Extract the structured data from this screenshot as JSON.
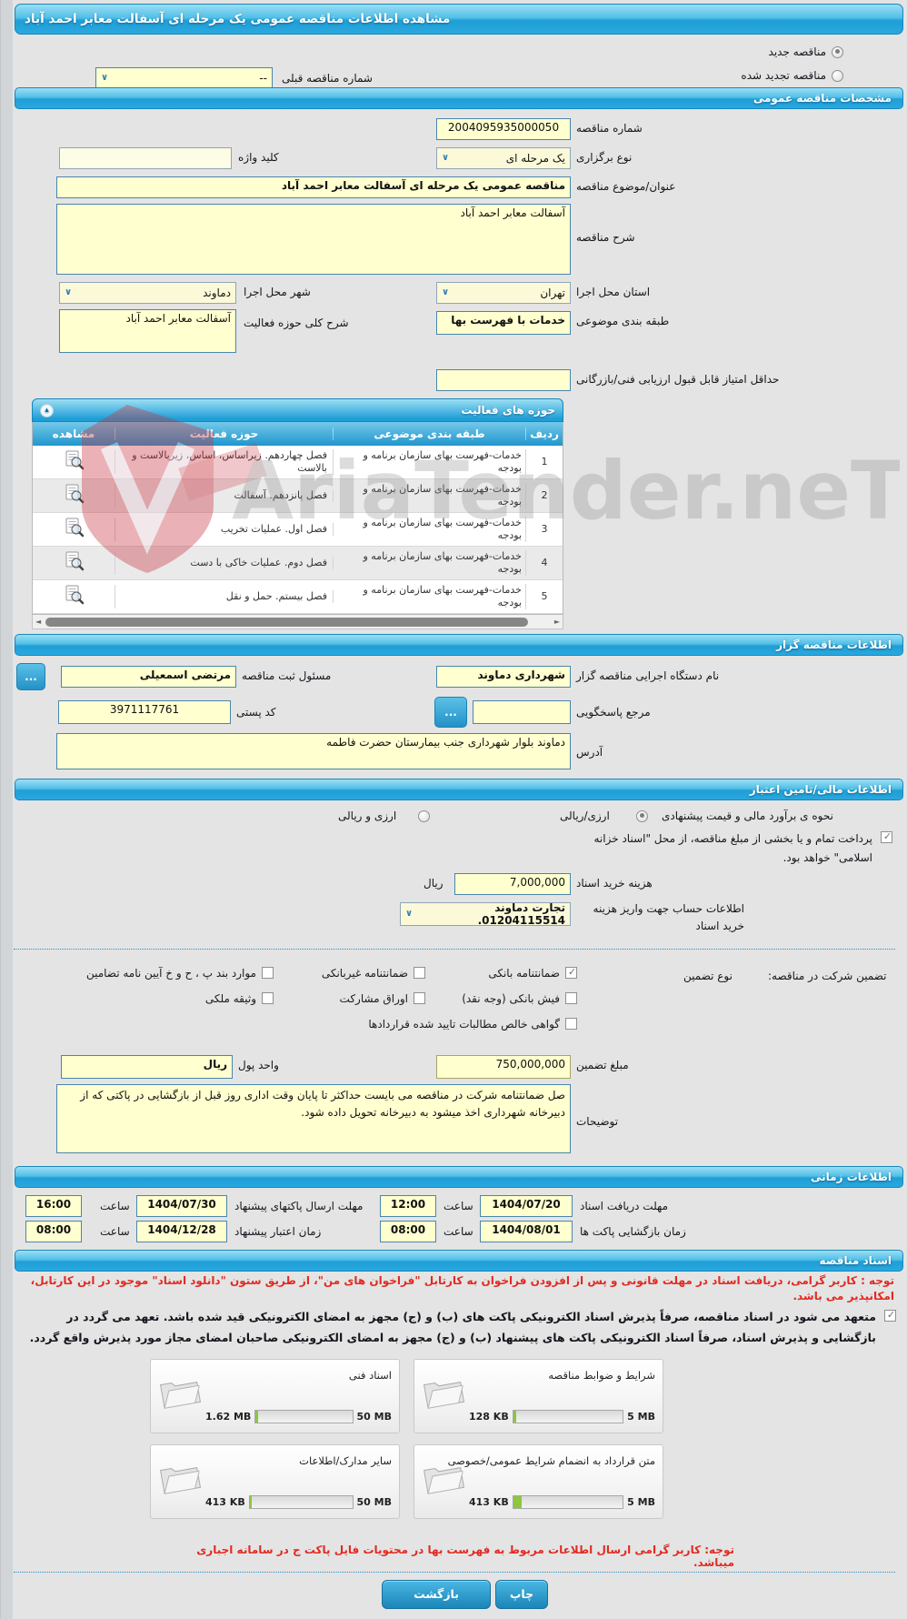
{
  "title": "مشاهده اطلاعات مناقصه عمومی یک مرحله ای آسفالت معابر احمد آباد",
  "watermark": "AriaTender.neT",
  "colors": {
    "header_blue": "#28a7de",
    "field_yellow": "#ffffcf",
    "alert_red": "#e22a21",
    "progress_green": "#8dc63f",
    "button_blue": "#1b85b8"
  },
  "top": {
    "new_label": "مناقصه جدید",
    "new_checked": true,
    "renewed_label": "مناقصه تجدید شده",
    "renewed_checked": false,
    "prev_label": "شماره مناقصه قبلی",
    "prev_value": "--"
  },
  "specs": {
    "header": "مشخصات مناقصه عمومی",
    "number_label": "شماره مناقصه",
    "number": "2004095935000050",
    "type_label": "نوع برگزاری",
    "type_value": "یک مرحله ای",
    "keyword_label": "کلید واژه",
    "keyword_value": "",
    "subject_label": "عنوان/موضوع مناقصه",
    "subject_value": "مناقصه عمومی یک مرحله ای آسفالت معابر احمد آباد",
    "desc_label": "شرح مناقصه",
    "desc_value": "آسفالت معابر احمد آباد",
    "province_label": "استان محل اجرا",
    "province_value": "تهران",
    "city_label": "شهر محل اجرا",
    "city_value": "دماوند",
    "class_label": "طبقه بندی موضوعی",
    "class_value": "خدمات با فهرست بها",
    "scope_label": "شرح کلی حوزه فعالیت",
    "scope_value": "آسفالت معابر احمد آباد",
    "min_score_label": "حداقل امتیاز قابل قبول ارزیابی فنی/بازرگانی",
    "min_score_value": ""
  },
  "activities": {
    "header": "حوزه های فعالیت",
    "col_row": "ردیف",
    "col_class": "طبقه بندی موضوعی",
    "col_activity": "حوزه فعالیت",
    "col_view": "مشاهده",
    "rows": [
      {
        "n": "1",
        "c": "خدمات-فهرست بهای سازمان برنامه و بودجه",
        "a": "فصل چهاردهم. زیراساس، اساس، زیربالاست و بالاست"
      },
      {
        "n": "2",
        "c": "خدمات-فهرست بهای سازمان برنامه و بودجه",
        "a": "فصل پانزدهم. آسفالت"
      },
      {
        "n": "3",
        "c": "خدمات-فهرست بهای سازمان برنامه و بودجه",
        "a": "فصل اول. عملیات تخریب"
      },
      {
        "n": "4",
        "c": "خدمات-فهرست بهای سازمان برنامه و بودجه",
        "a": "فصل دوم. عملیات خاکی با دست"
      },
      {
        "n": "5",
        "c": "خدمات-فهرست بهای سازمان برنامه و بودجه",
        "a": "فصل بیستم. حمل و نقل"
      }
    ]
  },
  "tenderer": {
    "header": "اطلاعات مناقصه گزار",
    "agency_label": "نام دستگاه اجرایی مناقصه گزار",
    "agency_value": "شهرداری دماوند",
    "registrar_label": "مسئول ثبت مناقصه",
    "registrar_value": "مرتضی اسمعیلی",
    "answer_label": "مرجع پاسخگویی",
    "answer_value": "",
    "postal_label": "کد پستی",
    "postal_value": "3971117761",
    "address_label": "آدرس",
    "address_value": "دماوند بلوار شهرداری  جنب بیمارستان حضرت فاطمه",
    "more_label": "..."
  },
  "financial": {
    "header": "اطلاعات مالی/تامین اعتبار",
    "method_label": "نحوه ی برآورد مالی و قیمت پیشنهادی",
    "method_opt1": "ارزی/ریالی",
    "method1_checked": true,
    "method_opt2": "ارزی و ریالی",
    "method2_checked": false,
    "treasury_note": "پرداخت تمام و یا بخشی از مبلغ مناقصه، از محل \"اسناد خزانه اسلامی\" خواهد بود.",
    "treasury_checked": true,
    "fee_label": "هزینه خرید اسناد",
    "fee_value": "7,000,000",
    "rial_label": "ریال",
    "account_label": "اطلاعات حساب جهت واریز هزینه خرید اسناد",
    "account_value": "تجارت دماوند 01204115514."
  },
  "guarantee": {
    "part1": "تضمین شرکت در مناقصه:",
    "part2": "نوع تضمین",
    "options": [
      {
        "label": "ضمانتنامه بانکی",
        "checked": true
      },
      {
        "label": "ضمانتنامه غیربانکی",
        "checked": false
      },
      {
        "label": "موارد بند پ ، ح و خ آیین نامه تضامین",
        "checked": false
      },
      {
        "label": "فیش بانکی (وجه نقد)",
        "checked": false
      },
      {
        "label": "اوراق مشارکت",
        "checked": false
      },
      {
        "label": "وثیقه ملکی",
        "checked": false
      },
      {
        "label": "گواهی خالص مطالبات تایید شده قراردادها",
        "checked": false
      }
    ],
    "amount_label": "مبلغ تضمین",
    "amount_value": "750,000,000",
    "currency_label": "واحد پول",
    "currency_value": "ریال",
    "notes_label": "توضیحات",
    "notes_value": "صل ضمانتنامه شرکت در مناقصه می بایست حداکثر تا پایان وقت اداری روز قبل از بازگشایی در پاکتی که از دبیرخانه شهرداری اخذ میشود به دبیرخانه تحویل داده شود."
  },
  "timing": {
    "header": "اطلاعات زمانی",
    "hour": "ساعت",
    "receive_label": "مهلت دریافت اسناد",
    "receive_date": "1404/07/20",
    "receive_time": "12:00",
    "send_label": "مهلت ارسال پاکتهای پیشنهاد",
    "send_date": "1404/07/30",
    "send_time": "16:00",
    "open_label": "زمان بازگشایی پاکت ها",
    "open_date": "1404/08/01",
    "open_time": "08:00",
    "valid_label": "زمان اعتبار پیشنهاد",
    "valid_date": "1404/12/28",
    "valid_time": "08:00"
  },
  "docs": {
    "header": "اسناد مناقصه",
    "notice1": "توجه : کاربر گرامی، دریافت اسناد در مهلت قانونی و پس از افزودن فراخوان به کارتابل \"فراخوان های من\"، از طریق ستون \"دانلود اسناد\" موجود در این کارتابل، امکانپذیر می باشد.",
    "commitment": "متعهد می شود در اسناد مناقصه، صرفاً پذیرش اسناد الکترونیکی پاکت های (ب) و (ج) مجهز به امضای الکترونیکی قید شده باشد. تعهد می گردد در بازگشایی و پذیرش اسناد، صرفاً اسناد الکترونیکی پاکت های پیشنهاد (ب) و (ج) مجهز به امضای الکترونیکی صاحبان امضای مجاز مورد پذیرش واقع گردد.",
    "commitment_checked": true,
    "files": [
      {
        "label": "شرایط و ضوابط مناقصه",
        "size": "128 KB",
        "max": "5 MB",
        "pct": 3
      },
      {
        "label": "اسناد فنی",
        "size": "1.62 MB",
        "max": "50 MB",
        "pct": 3
      },
      {
        "label": "متن قرارداد به انضمام شرایط عمومی/خصوصی",
        "size": "413 KB",
        "max": "5 MB",
        "pct": 8
      },
      {
        "label": "سایر مدارک/اطلاعات",
        "size": "413 KB",
        "max": "50 MB",
        "pct": 2
      }
    ],
    "notice2": "توجه: کاربر گرامی ارسال اطلاعات مربوط به فهرست بها در محتویات فایل پاکت ج در سامانه اجباری میباشد."
  },
  "footer": {
    "print": "چاپ",
    "back": "بازگشت"
  }
}
